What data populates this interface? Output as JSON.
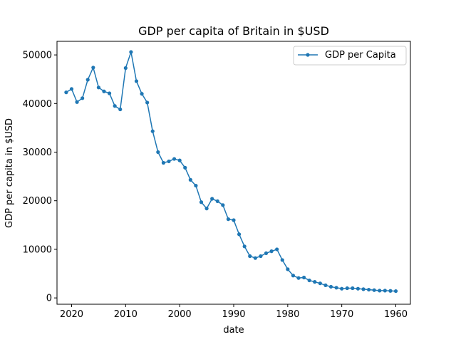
{
  "chart_data": {
    "type": "line",
    "title": "GDP per capita of Britain in $USD",
    "xlabel": "date",
    "ylabel": "GDP per capita in $USD",
    "xlim": [
      2022.7,
      1957.3
    ],
    "ylim": [
      -1300,
      52800
    ],
    "x_inverted": true,
    "xticks": [
      2020,
      2010,
      2000,
      1990,
      1980,
      1970,
      1960
    ],
    "yticks": [
      0,
      10000,
      20000,
      30000,
      40000,
      50000
    ],
    "grid": false,
    "legend": "upper right",
    "line_color": "#1f77b4",
    "marker": "circle",
    "series": [
      {
        "name": "GDP per Capita",
        "x": [
          2021,
          2020,
          2019,
          2018,
          2017,
          2016,
          2015,
          2014,
          2013,
          2012,
          2011,
          2010,
          2009,
          2008,
          2007,
          2006,
          2005,
          2004,
          2003,
          2002,
          2001,
          2000,
          1999,
          1998,
          1997,
          1996,
          1995,
          1994,
          1993,
          1992,
          1991,
          1990,
          1989,
          1988,
          1987,
          1986,
          1985,
          1984,
          1983,
          1982,
          1981,
          1980,
          1979,
          1978,
          1977,
          1976,
          1975,
          1974,
          1973,
          1972,
          1971,
          1970,
          1969,
          1968,
          1967,
          1966,
          1965,
          1964,
          1963,
          1962,
          1961,
          1960
        ],
        "values": [
          42300,
          43000,
          40300,
          41100,
          44900,
          47400,
          43300,
          42500,
          42100,
          39500,
          38800,
          47300,
          50600,
          44600,
          42000,
          40200,
          34300,
          30000,
          27800,
          28100,
          28600,
          28300,
          26800,
          24300,
          23100,
          19700,
          18400,
          20400,
          19900,
          19100,
          16200,
          16000,
          13100,
          10600,
          8600,
          8200,
          8600,
          9200,
          9600,
          10000,
          7800,
          5900,
          4600,
          4100,
          4200,
          3600,
          3300,
          3000,
          2600,
          2300,
          2100,
          1900,
          2000,
          2000,
          1900,
          1800,
          1700,
          1600,
          1500,
          1500,
          1450,
          1400
        ]
      }
    ]
  }
}
